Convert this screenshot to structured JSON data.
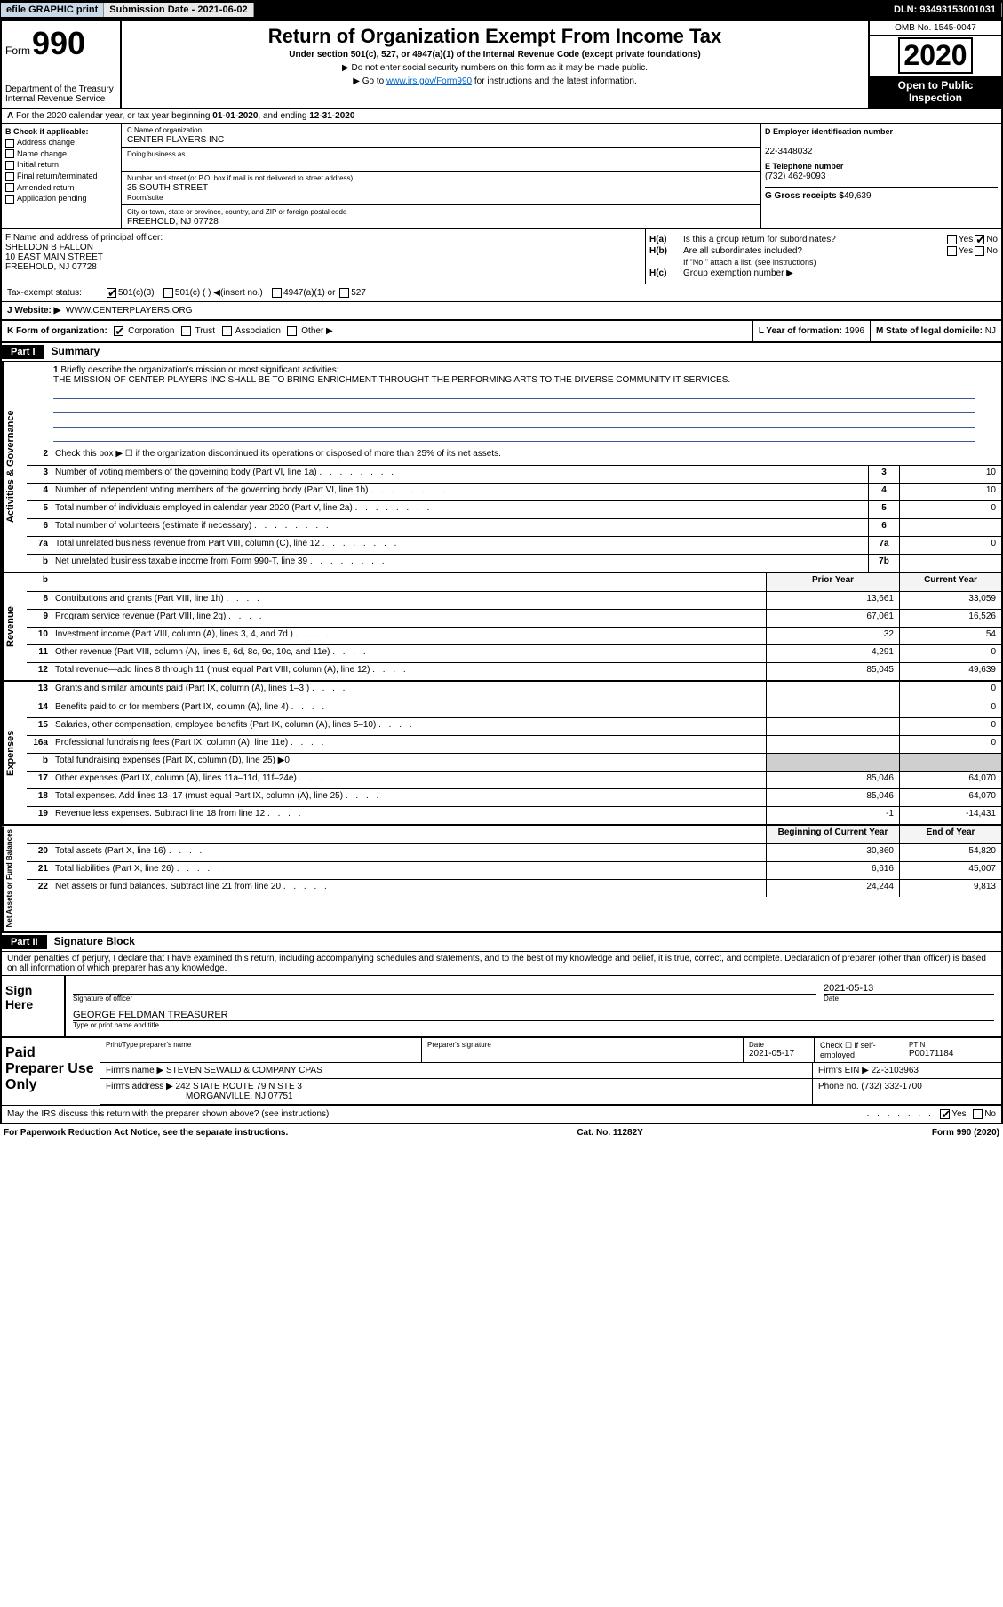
{
  "topbar": {
    "efile": "efile GRAPHIC print",
    "submit_l": "Submission Date - ",
    "submit_v": "2021-06-02",
    "dln_l": "DLN: ",
    "dln_v": "93493153001031"
  },
  "header": {
    "form_word": "Form",
    "form_num": "990",
    "dept": "Department of the Treasury\nInternal Revenue Service",
    "title": "Return of Organization Exempt From Income Tax",
    "sub": "Under section 501(c), 527, or 4947(a)(1) of the Internal Revenue Code (except private foundations)",
    "note1": "▶ Do not enter social security numbers on this form as it may be made public.",
    "note2a": "▶ Go to ",
    "note2link": "www.irs.gov/Form990",
    "note2b": " for instructions and the latest information.",
    "omb": "OMB No. 1545-0047",
    "year": "2020",
    "otp": "Open to Public Inspection"
  },
  "rowA": {
    "a": "A",
    "text": "For the 2020 calendar year, or tax year beginning ",
    "d1": "01-01-2020",
    "mid": ", and ending ",
    "d2": "12-31-2020"
  },
  "colB": {
    "h": "B Check if applicable:",
    "i": [
      "Address change",
      "Name change",
      "Initial return",
      "Final return/terminated",
      "Amended return",
      "Application pending"
    ]
  },
  "colC": {
    "name_l": "C Name of organization",
    "name": "CENTER PLAYERS INC",
    "dba_l": "Doing business as",
    "dba": "",
    "addr_l": "Number and street (or P.O. box if mail is not delivered to street address)",
    "room_l": "Room/suite",
    "addr": "35 SOUTH STREET",
    "city_l": "City or town, state or province, country, and ZIP or foreign postal code",
    "city": "FREEHOLD, NJ  07728"
  },
  "colD": {
    "ein_l": "D Employer identification number",
    "ein": "22-3448032",
    "tel_l": "E Telephone number",
    "tel": "(732) 462-9093",
    "gross_l": "G Gross receipts $",
    "gross": "49,639"
  },
  "rowF": {
    "l": "F  Name and address of principal officer:",
    "n": "SHELDON B FALLON",
    "a": "10 EAST MAIN STREET",
    "c": "FREEHOLD, NJ  07728"
  },
  "rowH": {
    "a_l": "H(a)",
    "a_t": "Is this a group return for subordinates?",
    "a_yes": "Yes",
    "a_no": "No",
    "b_l": "H(b)",
    "b_t": "Are all subordinates included?",
    "b_note": "If \"No,\" attach a list. (see instructions)",
    "c_l": "H(c)",
    "c_t": "Group exemption number ▶"
  },
  "tes": {
    "l": "Tax-exempt status:",
    "o1": "501(c)(3)",
    "o2": "501(c) (  ) ◀(insert no.)",
    "o3": "4947(a)(1) or",
    "o4": "527"
  },
  "web": {
    "l": "J  Website: ▶",
    "v": "WWW.CENTERPLAYERS.ORG"
  },
  "kfm": {
    "k": "K Form of organization:",
    "k1": "Corporation",
    "k2": "Trust",
    "k3": "Association",
    "k4": "Other ▶",
    "l": "L Year of formation:",
    "lv": "1996",
    "m": "M State of legal domicile:",
    "mv": "NJ"
  },
  "p1": {
    "h": "Part I",
    "t": "Summary"
  },
  "mission": {
    "n": "1",
    "l": "Briefly describe the organization's mission or most significant activities:",
    "t": "THE MISSION OF CENTER PLAYERS INC SHALL BE TO BRING ENRICHMENT THROUGHT THE PERFORMING ARTS TO THE DIVERSE COMMUNITY IT SERVICES."
  },
  "ag": {
    "sec": "Activities & Governance",
    "l2": "Check this box ▶ ☐  if the organization discontinued its operations or disposed of more than 25% of its net assets.",
    "rows": [
      {
        "n": "3",
        "d": "Number of voting members of the governing body (Part VI, line 1a)",
        "c": "3",
        "v": "10"
      },
      {
        "n": "4",
        "d": "Number of independent voting members of the governing body (Part VI, line 1b)",
        "c": "4",
        "v": "10"
      },
      {
        "n": "5",
        "d": "Total number of individuals employed in calendar year 2020 (Part V, line 2a)",
        "c": "5",
        "v": "0"
      },
      {
        "n": "6",
        "d": "Total number of volunteers (estimate if necessary)",
        "c": "6",
        "v": ""
      },
      {
        "n": "7a",
        "d": "Total unrelated business revenue from Part VIII, column (C), line 12",
        "c": "7a",
        "v": "0"
      },
      {
        "n": "b",
        "d": "Net unrelated business taxable income from Form 990-T, line 39",
        "c": "7b",
        "v": ""
      }
    ]
  },
  "rev": {
    "sec": "Revenue",
    "py": "Prior Year",
    "cy": "Current Year",
    "rows": [
      {
        "n": "8",
        "d": "Contributions and grants (Part VIII, line 1h)",
        "p": "13,661",
        "c": "33,059"
      },
      {
        "n": "9",
        "d": "Program service revenue (Part VIII, line 2g)",
        "p": "67,061",
        "c": "16,526"
      },
      {
        "n": "10",
        "d": "Investment income (Part VIII, column (A), lines 3, 4, and 7d )",
        "p": "32",
        "c": "54"
      },
      {
        "n": "11",
        "d": "Other revenue (Part VIII, column (A), lines 5, 6d, 8c, 9c, 10c, and 11e)",
        "p": "4,291",
        "c": "0"
      },
      {
        "n": "12",
        "d": "Total revenue—add lines 8 through 11 (must equal Part VIII, column (A), line 12)",
        "p": "85,045",
        "c": "49,639"
      }
    ]
  },
  "exp": {
    "sec": "Expenses",
    "rows": [
      {
        "n": "13",
        "d": "Grants and similar amounts paid (Part IX, column (A), lines 1–3 )",
        "p": "",
        "c": "0"
      },
      {
        "n": "14",
        "d": "Benefits paid to or for members (Part IX, column (A), line 4)",
        "p": "",
        "c": "0"
      },
      {
        "n": "15",
        "d": "Salaries, other compensation, employee benefits (Part IX, column (A), lines 5–10)",
        "p": "",
        "c": "0"
      },
      {
        "n": "16a",
        "d": "Professional fundraising fees (Part IX, column (A), line 11e)",
        "p": "",
        "c": "0"
      },
      {
        "n": "b",
        "d": "Total fundraising expenses (Part IX, column (D), line 25) ▶0",
        "p": "SHADE",
        "c": "SHADE"
      },
      {
        "n": "17",
        "d": "Other expenses (Part IX, column (A), lines 11a–11d, 11f–24e)",
        "p": "85,046",
        "c": "64,070"
      },
      {
        "n": "18",
        "d": "Total expenses. Add lines 13–17 (must equal Part IX, column (A), line 25)",
        "p": "85,046",
        "c": "64,070"
      },
      {
        "n": "19",
        "d": "Revenue less expenses. Subtract line 18 from line 12",
        "p": "-1",
        "c": "-14,431"
      }
    ]
  },
  "na": {
    "sec": "Net Assets or Fund Balances",
    "by": "Beginning of Current Year",
    "ey": "End of Year",
    "rows": [
      {
        "n": "20",
        "d": "Total assets (Part X, line 16)",
        "p": "30,860",
        "c": "54,820"
      },
      {
        "n": "21",
        "d": "Total liabilities (Part X, line 26)",
        "p": "6,616",
        "c": "45,007"
      },
      {
        "n": "22",
        "d": "Net assets or fund balances. Subtract line 21 from line 20",
        "p": "24,244",
        "c": "9,813"
      }
    ]
  },
  "p2": {
    "h": "Part II",
    "t": "Signature Block",
    "pen": "Under penalties of perjury, I declare that I have examined this return, including accompanying schedules and statements, and to the best of my knowledge and belief, it is true, correct, and complete. Declaration of preparer (other than officer) is based on all information of which preparer has any knowledge."
  },
  "sign": {
    "h": "Sign Here",
    "so": "Signature of officer",
    "dt_l": "Date",
    "dt": "2021-05-13",
    "nm": "GEORGE FELDMAN  TREASURER",
    "nm_l": "Type or print name and title"
  },
  "prep": {
    "h": "Paid Preparer Use Only",
    "c1": "Print/Type preparer's name",
    "c2": "Preparer's signature",
    "c3_l": "Date",
    "c3": "2021-05-17",
    "c4": "Check ☐ if self-employed",
    "c5_l": "PTIN",
    "c5": "P00171184",
    "firm_l": "Firm's name   ▶",
    "firm": "STEVEN SEWALD & COMPANY CPAS",
    "ein_l": "Firm's EIN ▶",
    "ein": "22-3103963",
    "addr_l": "Firm's address ▶",
    "addr1": "242 STATE ROUTE 79 N STE 3",
    "addr2": "MORGANVILLE, NJ  07751",
    "ph_l": "Phone no.",
    "ph": "(732) 332-1700",
    "irs": "May the IRS discuss this return with the preparer shown above? (see instructions)",
    "y": "Yes",
    "n": "No"
  },
  "foot": {
    "l": "For Paperwork Reduction Act Notice, see the separate instructions.",
    "m": "Cat. No. 11282Y",
    "r": "Form 990 (2020)"
  }
}
